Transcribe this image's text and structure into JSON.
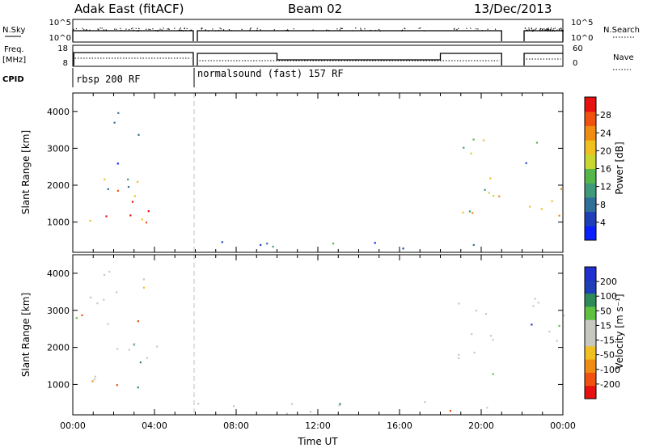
{
  "header": {
    "station": "Adak East (fitACF)",
    "beam": "Beam 02",
    "date": "13/Dec/2013"
  },
  "strips": {
    "nsky_label": "N.Sky",
    "nsearch_label": "N.Search",
    "freq_label_1": "Freq.",
    "freq_label_2": "[MHz]",
    "nave_label": "Nave",
    "cpid_label": "CPID",
    "noise_left_ticks": [
      "10^5",
      "10^0"
    ],
    "noise_right_ticks": [
      "10^5",
      "10^0"
    ],
    "freq_left_ticks": [
      "18",
      "8"
    ],
    "freq_right_ticks": [
      "60",
      "0"
    ],
    "cpid_segments": [
      {
        "label": "rbsp 200 RF",
        "start_hour": 0.0
      },
      {
        "label": "normalsound (fast) 157 RF",
        "start_hour": 6.0
      }
    ]
  },
  "colors": {
    "power_scale": [
      "#0a20ff",
      "#1e3fb8",
      "#2f6f9a",
      "#3f9a7a",
      "#57b64a",
      "#c8d630",
      "#f0c020",
      "#f08c10",
      "#f05010",
      "#e81010"
    ],
    "velocity_scale": [
      "#e81010",
      "#f05010",
      "#f08c10",
      "#f0c020",
      "#c8c8c0",
      "#c8c8c0",
      "#60c040",
      "#2f8a5a",
      "#1e3fb8",
      "#2030d0"
    ],
    "groundscatter": "#c8c8c0"
  },
  "chart_data": [
    {
      "type": "heatmap",
      "name": "power-panel",
      "ylabel": "Slant Range [km]",
      "yticks": [
        "4000",
        "3000",
        "2000",
        "1000"
      ],
      "ylim": [
        180,
        4500
      ],
      "xlim_hours": [
        0,
        24
      ],
      "colorbar_label": "Power [dB]",
      "colorbar_ticks": [
        "28",
        "24",
        "20",
        "16",
        "12",
        "8",
        "4"
      ],
      "colorbar_range": [
        0,
        30
      ],
      "gap_hours": [
        [
          21.0,
          22.0
        ]
      ],
      "scatter_regions": [
        {
          "t0": 0.1,
          "t1": 4.2,
          "r0": 900,
          "r1": 1900,
          "level": 0.75
        },
        {
          "t0": 0.1,
          "t1": 3.8,
          "r0": 1900,
          "r1": 2600,
          "level": 0.45
        },
        {
          "t0": 0.1,
          "t1": 3.2,
          "r0": 2600,
          "r1": 4200,
          "level": 0.2
        },
        {
          "t0": 6.0,
          "t1": 20.8,
          "r0": 200,
          "r1": 500,
          "level": 0.25
        },
        {
          "t0": 18.8,
          "t1": 21.0,
          "r0": 1000,
          "r1": 3300,
          "level": 0.55
        },
        {
          "t0": 22.1,
          "t1": 24.0,
          "r0": 900,
          "r1": 2000,
          "level": 0.75
        },
        {
          "t0": 22.1,
          "t1": 24.0,
          "r0": 2000,
          "r1": 3500,
          "level": 0.35
        }
      ]
    },
    {
      "type": "heatmap",
      "name": "velocity-panel",
      "ylabel": "Slant Range [km]",
      "yticks": [
        "4000",
        "3000",
        "2000",
        "1000"
      ],
      "ylim": [
        180,
        4500
      ],
      "xlim_hours": [
        0,
        24
      ],
      "xlabel": "Time UT",
      "xticks": [
        "00:00",
        "04:00",
        "08:00",
        "12:00",
        "16:00",
        "20:00",
        "00:00"
      ],
      "colorbar_label": "Velocity [m s⁻¹]",
      "colorbar_ticks": [
        "200",
        "100",
        "50",
        "15",
        "-15",
        "-50",
        "-100",
        "-200"
      ],
      "colorbar_range": [
        -250,
        250
      ],
      "gap_hours": [
        [
          21.0,
          22.0
        ]
      ],
      "scatter_regions": [
        {
          "t0": 0.1,
          "t1": 4.2,
          "r0": 900,
          "r1": 2600,
          "level": 0.5
        },
        {
          "t0": 0.1,
          "t1": 3.5,
          "r0": 2600,
          "r1": 4200,
          "level": 0.6
        },
        {
          "t0": 6.0,
          "t1": 20.8,
          "r0": 200,
          "r1": 600,
          "level": 0.55
        },
        {
          "t0": 18.8,
          "t1": 21.0,
          "r0": 1000,
          "r1": 3300,
          "level": 0.5
        },
        {
          "t0": 22.1,
          "t1": 24.0,
          "r0": 900,
          "r1": 3500,
          "level": 0.5
        }
      ]
    }
  ]
}
